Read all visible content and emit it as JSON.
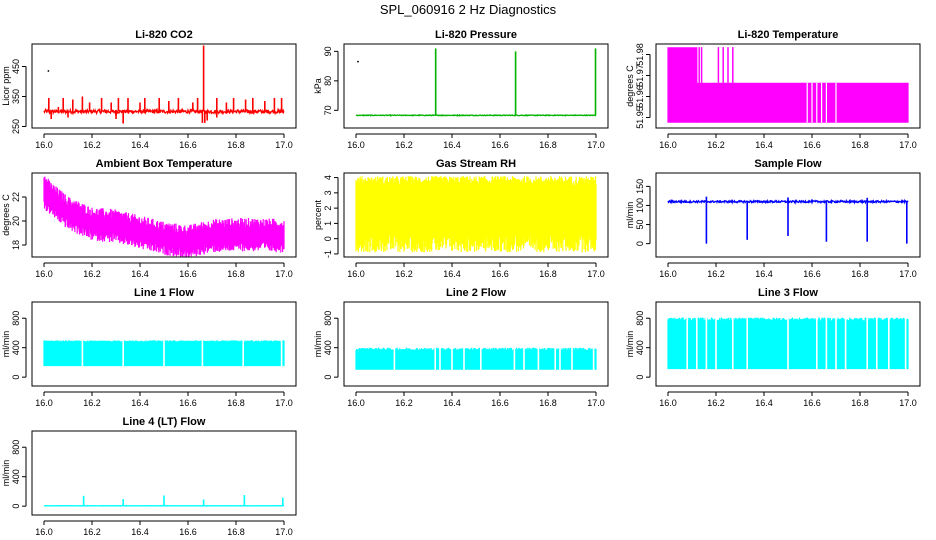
{
  "figure_title": "SPL_060916  2 Hz Diagnostics",
  "chart_data": [
    {
      "id": "co2",
      "type": "line",
      "title": "Li-820 CO2",
      "ylabel": "Licor ppm",
      "color": "#ff0000",
      "xlim": [
        16.0,
        17.0
      ],
      "ylim": [
        245,
        525
      ],
      "yticks": [
        250,
        350,
        450
      ],
      "xticks": [
        "16.0",
        "16.2",
        "16.4",
        "16.6",
        "16.8",
        "17.0"
      ],
      "series": [
        {
          "name": "CO2",
          "baseline": 300,
          "noise": 12,
          "spikes": [
            [
              16.02,
              345
            ],
            [
              16.06,
              315
            ],
            [
              16.08,
              345
            ],
            [
              16.12,
              340
            ],
            [
              16.16,
              350
            ],
            [
              16.19,
              330
            ],
            [
              16.24,
              345
            ],
            [
              16.28,
              330
            ],
            [
              16.31,
              345
            ],
            [
              16.33,
              260
            ],
            [
              16.35,
              345
            ],
            [
              16.4,
              330
            ],
            [
              16.42,
              345
            ],
            [
              16.48,
              345
            ],
            [
              16.52,
              335
            ],
            [
              16.56,
              345
            ],
            [
              16.62,
              330
            ],
            [
              16.64,
              345
            ],
            [
              16.665,
              520
            ],
            [
              16.67,
              262
            ],
            [
              16.72,
              345
            ],
            [
              16.76,
              330
            ],
            [
              16.79,
              345
            ],
            [
              16.84,
              340
            ],
            [
              16.87,
              345
            ],
            [
              16.92,
              335
            ],
            [
              16.96,
              345
            ],
            [
              16.99,
              345
            ]
          ],
          "dips": [
            [
              16.03,
              275
            ],
            [
              16.1,
              280
            ],
            [
              16.3,
              275
            ],
            [
              16.33,
              262
            ],
            [
              16.66,
              262
            ],
            [
              16.68,
              270
            ],
            [
              16.72,
              280
            ]
          ],
          "stray": [
            [
              16.01,
              435
            ]
          ]
        }
      ]
    },
    {
      "id": "pressure",
      "type": "line",
      "title": "Li-820 Pressure",
      "ylabel": "kPa",
      "color": "#00b400",
      "xlim": [
        16.0,
        17.0
      ],
      "ylim": [
        64,
        92.5
      ],
      "yticks": [
        70,
        80,
        90
      ],
      "xticks": [
        "16.0",
        "16.2",
        "16.4",
        "16.6",
        "16.8",
        "17.0"
      ],
      "series": [
        {
          "name": "Pressure",
          "baseline": 68.3,
          "noise": 0.25,
          "spikes": [
            [
              16.332,
              91
            ],
            [
              16.665,
              90
            ],
            [
              16.998,
              91
            ]
          ],
          "dips": [],
          "stray": [
            [
              16.0,
              86.5
            ]
          ]
        }
      ]
    },
    {
      "id": "licor_temp",
      "type": "line",
      "title": "Li-820 Temperature",
      "ylabel": "degrees C",
      "color": "#ff00ff",
      "xlim": [
        16.0,
        17.0
      ],
      "ylim": [
        51.945,
        51.985
      ],
      "yticks": [
        51.95,
        51.96,
        51.97,
        51.98
      ],
      "xticks": [
        "16.0",
        "16.2",
        "16.4",
        "16.6",
        "16.8",
        "17.0"
      ],
      "series": [
        {
          "name": "Temperature",
          "segments": [
            [
              16.0,
              16.12,
              51.9475,
              51.9835
            ],
            [
              16.12,
              17.0,
              51.9475,
              51.9665
            ]
          ],
          "spikes": [
            [
              16.13,
              51.9835
            ],
            [
              16.14,
              51.9835
            ],
            [
              16.21,
              51.9835
            ],
            [
              16.23,
              51.9835
            ],
            [
              16.25,
              51.9835
            ],
            [
              16.27,
              51.9835
            ]
          ],
          "gaps": [
            16.58,
            16.6,
            16.62,
            16.64,
            16.66,
            16.7
          ]
        }
      ]
    },
    {
      "id": "ambient_temp",
      "type": "line",
      "title": "Ambient Box Temperature",
      "ylabel": "degrees C",
      "color": "#ff00ff",
      "xlim": [
        16.0,
        17.0
      ],
      "ylim": [
        17,
        24
      ],
      "yticks": [
        18,
        20,
        22
      ],
      "xticks": [
        "16.0",
        "16.2",
        "16.4",
        "16.6",
        "16.8",
        "17.0"
      ],
      "series": [
        {
          "name": "Ambient",
          "trend": [
            [
              16.0,
              22.5
            ],
            [
              16.1,
              20.8
            ],
            [
              16.2,
              19.9
            ],
            [
              16.3,
              19.7
            ],
            [
              16.4,
              19.2
            ],
            [
              16.5,
              18.7
            ],
            [
              16.6,
              18.4
            ],
            [
              16.7,
              18.9
            ],
            [
              16.8,
              19.0
            ],
            [
              16.9,
              19.0
            ],
            [
              17.0,
              18.9
            ]
          ],
          "spread": 1.4,
          "startpeak": 23.7
        }
      ]
    },
    {
      "id": "rh",
      "type": "line",
      "title": "Gas Stream RH",
      "ylabel": "percent",
      "color": "#ffff00",
      "xlim": [
        16.0,
        17.0
      ],
      "ylim": [
        -1.2,
        4.3
      ],
      "yticks": [
        -1,
        0,
        1,
        2,
        3,
        4
      ],
      "xticks": [
        "16.0",
        "16.2",
        "16.4",
        "16.6",
        "16.8",
        "17.0"
      ],
      "series": [
        {
          "name": "RH",
          "band": [
            0.3,
            3.5
          ],
          "lo": -0.9,
          "hi": 4.1
        }
      ]
    },
    {
      "id": "sample_flow",
      "type": "line",
      "title": "Sample Flow",
      "ylabel": "ml/min",
      "color": "#0000ff",
      "xlim": [
        16.0,
        17.0
      ],
      "ylim": [
        -35,
        185
      ],
      "yticks": [
        0,
        50,
        100,
        150
      ],
      "xticks": [
        "16.0",
        "16.2",
        "16.4",
        "16.6",
        "16.8",
        "17.0"
      ],
      "series": [
        {
          "name": "Sample",
          "baseline": 110,
          "noise": 5,
          "dips": [
            [
              16.16,
              0
            ],
            [
              16.33,
              10
            ],
            [
              16.5,
              20
            ],
            [
              16.66,
              5
            ],
            [
              16.83,
              5
            ],
            [
              16.995,
              0
            ]
          ],
          "spikes": [
            [
              16.16,
              123
            ],
            [
              16.5,
              121
            ],
            [
              16.83,
              120
            ]
          ]
        }
      ]
    },
    {
      "id": "line1",
      "type": "line",
      "title": "Line 1 Flow",
      "ylabel": "ml/min",
      "color": "#00ffff",
      "xlim": [
        16.0,
        17.0
      ],
      "ylim": [
        -120,
        1020
      ],
      "yticks": [
        0,
        400,
        800
      ],
      "xticks": [
        "16.0",
        "16.2",
        "16.4",
        "16.6",
        "16.8",
        "17.0"
      ],
      "series": [
        {
          "name": "Line1",
          "band": [
            150,
            480
          ],
          "top": 500,
          "gaps": [
            16.16,
            16.33,
            16.5,
            16.66,
            16.83,
            16.99
          ]
        }
      ]
    },
    {
      "id": "line2",
      "type": "line",
      "title": "Line 2 Flow",
      "ylabel": "ml/min",
      "color": "#00ffff",
      "xlim": [
        16.0,
        17.0
      ],
      "ylim": [
        -120,
        1020
      ],
      "yticks": [
        0,
        400,
        800
      ],
      "xticks": [
        "16.0",
        "16.2",
        "16.4",
        "16.6",
        "16.8",
        "17.0"
      ],
      "series": [
        {
          "name": "Line2",
          "band": [
            100,
            360
          ],
          "top": 400,
          "gaps": [
            16.16,
            16.33,
            16.35,
            16.4,
            16.45,
            16.52,
            16.66,
            16.7,
            16.76,
            16.83,
            16.85,
            16.9,
            16.99
          ]
        }
      ]
    },
    {
      "id": "line3",
      "type": "line",
      "title": "Line 3 Flow",
      "ylabel": "ml/min",
      "color": "#00ffff",
      "xlim": [
        16.0,
        17.0
      ],
      "ylim": [
        -120,
        1020
      ],
      "yticks": [
        0,
        400,
        800
      ],
      "xticks": [
        "16.0",
        "16.2",
        "16.4",
        "16.6",
        "16.8",
        "17.0"
      ],
      "series": [
        {
          "name": "Line3",
          "band": [
            110,
            760
          ],
          "top": 810,
          "gaps": [
            16.08,
            16.12,
            16.16,
            16.2,
            16.27,
            16.33,
            16.5,
            16.62,
            16.66,
            16.7,
            16.74,
            16.83,
            16.87,
            16.92,
            16.99
          ]
        }
      ]
    },
    {
      "id": "line4",
      "type": "line",
      "title": "Line 4 (LT) Flow",
      "ylabel": "ml/min",
      "color": "#00ffff",
      "xlim": [
        16.0,
        17.0
      ],
      "ylim": [
        -120,
        1020
      ],
      "yticks": [
        0,
        400,
        800
      ],
      "xticks": [
        "16.0",
        "16.2",
        "16.4",
        "16.6",
        "16.8",
        "17.0"
      ],
      "series": [
        {
          "name": "Line4",
          "baseline": 5,
          "noise": 2,
          "spikes": [
            [
              16.165,
              140
            ],
            [
              16.33,
              95
            ],
            [
              16.5,
              145
            ],
            [
              16.665,
              90
            ],
            [
              16.835,
              150
            ],
            [
              16.995,
              115
            ]
          ]
        }
      ]
    }
  ]
}
